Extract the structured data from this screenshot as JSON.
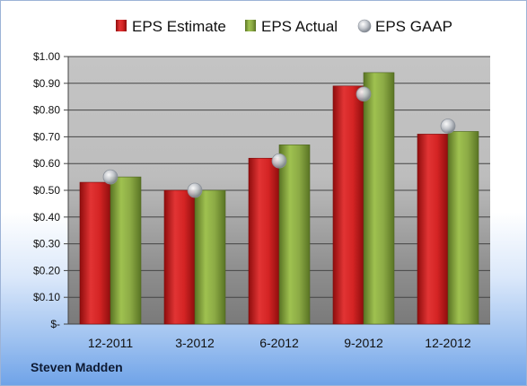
{
  "chart_data": {
    "type": "bar",
    "categories": [
      "12-2011",
      "3-2012",
      "6-2012",
      "9-2012",
      "12-2012"
    ],
    "series": [
      {
        "name": "EPS Estimate",
        "kind": "bar",
        "color": "#cc1f1f",
        "values": [
          0.53,
          0.5,
          0.62,
          0.89,
          0.71
        ]
      },
      {
        "name": "EPS Actual",
        "kind": "bar",
        "color": "#8fb040",
        "values": [
          0.55,
          0.5,
          0.67,
          0.94,
          0.72
        ]
      },
      {
        "name": "EPS GAAP",
        "kind": "marker",
        "color": "#b9bec7",
        "values": [
          0.55,
          0.5,
          0.61,
          0.86,
          0.74
        ]
      }
    ],
    "ylim": [
      0,
      1.0
    ],
    "yticks": [
      "$-",
      "$0.10",
      "$0.20",
      "$0.30",
      "$0.40",
      "$0.50",
      "$0.60",
      "$0.70",
      "$0.80",
      "$0.90",
      "$1.00"
    ],
    "grid": true,
    "legend_position": "top"
  },
  "company": "Steven Madden"
}
